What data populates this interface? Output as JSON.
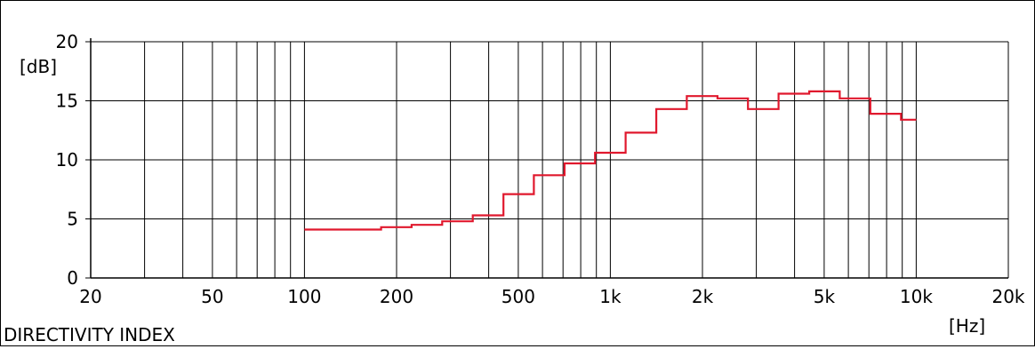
{
  "chart_data": {
    "type": "line",
    "title": "DIRECTIVITY INDEX",
    "xlabel": "[Hz]",
    "ylabel": "[dB]",
    "xscale": "log",
    "xlim": [
      20,
      20000
    ],
    "ylim": [
      0,
      20
    ],
    "grid": true,
    "x_ticks": [
      {
        "value": 20,
        "label": "20"
      },
      {
        "value": 50,
        "label": "50"
      },
      {
        "value": 100,
        "label": "100"
      },
      {
        "value": 200,
        "label": "200"
      },
      {
        "value": 500,
        "label": "500"
      },
      {
        "value": 1000,
        "label": "1k"
      },
      {
        "value": 2000,
        "label": "2k"
      },
      {
        "value": 5000,
        "label": "5k"
      },
      {
        "value": 10000,
        "label": "10k"
      },
      {
        "value": 20000,
        "label": "20k"
      }
    ],
    "y_ticks": [
      {
        "value": 0,
        "label": "0"
      },
      {
        "value": 5,
        "label": "5"
      },
      {
        "value": 10,
        "label": "10"
      },
      {
        "value": 15,
        "label": "15"
      },
      {
        "value": 20,
        "label": "20"
      }
    ],
    "series": [
      {
        "color": "#e0182d",
        "step_edges": [
          100,
          157,
          178,
          224,
          282,
          355,
          447,
          562,
          708,
          891,
          1122,
          1413,
          1778,
          2239,
          2818,
          3548,
          4467,
          5623,
          7079,
          8913,
          10000
        ],
        "values": [
          4.1,
          4.1,
          4.3,
          4.5,
          4.8,
          5.3,
          7.1,
          8.7,
          9.7,
          10.6,
          12.3,
          14.3,
          15.4,
          15.2,
          14.3,
          15.6,
          15.8,
          15.2,
          13.9,
          13.4
        ]
      }
    ]
  }
}
